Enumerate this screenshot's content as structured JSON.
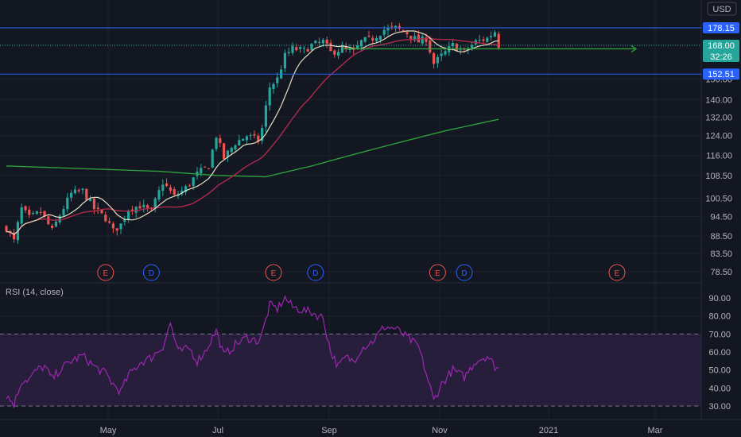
{
  "currency_badge": "USD",
  "rsi_label": "RSI (14, close)",
  "colors": {
    "background": "#131722",
    "up": "#26a69a",
    "down": "#ef5350",
    "sma_fast": "#e8dcc0",
    "sma_mid": "#b02a4d",
    "sma_slow": "#2e9f3a",
    "hline": "#2962ff",
    "rsi": "#9c27b0",
    "rsi_band": "#2a1f3f",
    "arrow": "#2e9f3a"
  },
  "price_tags": {
    "upper": "178.15",
    "current": "168.00",
    "countdown": "32:26",
    "lower": "152.51"
  },
  "chart_data": [
    {
      "type": "candlestick",
      "scale": "log",
      "y_ticks": [
        "178.00",
        "168.00",
        "150.00",
        "140.00",
        "132.00",
        "124.00",
        "116.00",
        "108.50",
        "100.50",
        "94.50",
        "88.50",
        "83.50",
        "78.50"
      ],
      "x_ticks": [
        "May",
        "Jul",
        "Sep",
        "Nov",
        "2021",
        "Mar"
      ],
      "horizontal_lines": [
        178.15,
        152.51
      ],
      "close_anchors": [
        {
          "t": 0,
          "v": 91
        },
        {
          "t": 2,
          "v": 87
        },
        {
          "t": 4,
          "v": 97
        },
        {
          "t": 6,
          "v": 94
        },
        {
          "t": 9,
          "v": 96
        },
        {
          "t": 12,
          "v": 90
        },
        {
          "t": 14,
          "v": 95
        },
        {
          "t": 17,
          "v": 102
        },
        {
          "t": 20,
          "v": 103
        },
        {
          "t": 23,
          "v": 97
        },
        {
          "t": 26,
          "v": 94
        },
        {
          "t": 28,
          "v": 90
        },
        {
          "t": 30,
          "v": 92
        },
        {
          "t": 32,
          "v": 97
        },
        {
          "t": 35,
          "v": 98
        },
        {
          "t": 38,
          "v": 96
        },
        {
          "t": 41,
          "v": 106
        },
        {
          "t": 44,
          "v": 101
        },
        {
          "t": 47,
          "v": 104
        },
        {
          "t": 50,
          "v": 109
        },
        {
          "t": 53,
          "v": 112
        },
        {
          "t": 55,
          "v": 124
        },
        {
          "t": 57,
          "v": 115
        },
        {
          "t": 60,
          "v": 121
        },
        {
          "t": 63,
          "v": 124
        },
        {
          "t": 66,
          "v": 122
        },
        {
          "t": 67,
          "v": 127
        },
        {
          "t": 69,
          "v": 146
        },
        {
          "t": 71,
          "v": 150
        },
        {
          "t": 73,
          "v": 162
        },
        {
          "t": 75,
          "v": 166
        },
        {
          "t": 78,
          "v": 165
        },
        {
          "t": 80,
          "v": 168
        },
        {
          "t": 83,
          "v": 170
        },
        {
          "t": 85,
          "v": 164
        },
        {
          "t": 88,
          "v": 166
        },
        {
          "t": 91,
          "v": 164
        },
        {
          "t": 93,
          "v": 170
        },
        {
          "t": 96,
          "v": 172
        },
        {
          "t": 99,
          "v": 177
        },
        {
          "t": 102,
          "v": 178
        },
        {
          "t": 105,
          "v": 175
        },
        {
          "t": 108,
          "v": 170
        },
        {
          "t": 110,
          "v": 172
        },
        {
          "t": 112,
          "v": 158
        },
        {
          "t": 114,
          "v": 162
        },
        {
          "t": 117,
          "v": 168
        },
        {
          "t": 120,
          "v": 164
        },
        {
          "t": 123,
          "v": 170
        },
        {
          "t": 126,
          "v": 172
        },
        {
          "t": 128,
          "v": 176
        },
        {
          "t": 129,
          "v": 168
        }
      ],
      "sma_slow_anchors": [
        {
          "t": 0,
          "v": 112
        },
        {
          "t": 20,
          "v": 111
        },
        {
          "t": 40,
          "v": 110
        },
        {
          "t": 55,
          "v": 108.5
        },
        {
          "t": 68,
          "v": 108
        },
        {
          "t": 80,
          "v": 112
        },
        {
          "t": 100,
          "v": 120
        },
        {
          "t": 115,
          "v": 126
        },
        {
          "t": 129,
          "v": 131
        }
      ],
      "events": [
        {
          "type": "earnings",
          "label": "E",
          "t": 26
        },
        {
          "type": "dividend",
          "label": "D",
          "t": 38
        },
        {
          "type": "earnings",
          "label": "E",
          "t": 70
        },
        {
          "type": "dividend",
          "label": "D",
          "t": 81
        },
        {
          "type": "earnings",
          "label": "E",
          "t": 113
        },
        {
          "type": "dividend",
          "label": "D",
          "t": 120
        },
        {
          "type": "earnings",
          "label": "E",
          "t": 160
        }
      ],
      "projection_arrow": {
        "from_t": 88,
        "to_t": 165,
        "v": 166
      }
    },
    {
      "type": "line",
      "title": "RSI (14, close)",
      "y_ticks": [
        "90.00",
        "80.00",
        "70.00",
        "60.00",
        "50.00",
        "40.00",
        "30.00"
      ],
      "bands": [
        70,
        30
      ],
      "rsi_anchors": [
        {
          "t": 0,
          "v": 36
        },
        {
          "t": 2,
          "v": 31
        },
        {
          "t": 4,
          "v": 44
        },
        {
          "t": 6,
          "v": 45
        },
        {
          "t": 8,
          "v": 50
        },
        {
          "t": 10,
          "v": 52
        },
        {
          "t": 12,
          "v": 45
        },
        {
          "t": 14,
          "v": 50
        },
        {
          "t": 17,
          "v": 55
        },
        {
          "t": 20,
          "v": 58
        },
        {
          "t": 23,
          "v": 52
        },
        {
          "t": 26,
          "v": 48
        },
        {
          "t": 28,
          "v": 42
        },
        {
          "t": 30,
          "v": 38
        },
        {
          "t": 32,
          "v": 47
        },
        {
          "t": 35,
          "v": 54
        },
        {
          "t": 38,
          "v": 57
        },
        {
          "t": 41,
          "v": 63
        },
        {
          "t": 43,
          "v": 76
        },
        {
          "t": 45,
          "v": 60
        },
        {
          "t": 48,
          "v": 62
        },
        {
          "t": 50,
          "v": 55
        },
        {
          "t": 52,
          "v": 60
        },
        {
          "t": 55,
          "v": 72
        },
        {
          "t": 57,
          "v": 58
        },
        {
          "t": 60,
          "v": 64
        },
        {
          "t": 63,
          "v": 68
        },
        {
          "t": 66,
          "v": 66
        },
        {
          "t": 67,
          "v": 70
        },
        {
          "t": 69,
          "v": 86
        },
        {
          "t": 71,
          "v": 84
        },
        {
          "t": 73,
          "v": 90
        },
        {
          "t": 75,
          "v": 85
        },
        {
          "t": 78,
          "v": 83
        },
        {
          "t": 80,
          "v": 82
        },
        {
          "t": 83,
          "v": 79
        },
        {
          "t": 85,
          "v": 60
        },
        {
          "t": 87,
          "v": 52
        },
        {
          "t": 89,
          "v": 57
        },
        {
          "t": 91,
          "v": 55
        },
        {
          "t": 93,
          "v": 62
        },
        {
          "t": 96,
          "v": 66
        },
        {
          "t": 99,
          "v": 74
        },
        {
          "t": 102,
          "v": 73
        },
        {
          "t": 105,
          "v": 68
        },
        {
          "t": 108,
          "v": 63
        },
        {
          "t": 110,
          "v": 48
        },
        {
          "t": 112,
          "v": 33
        },
        {
          "t": 114,
          "v": 42
        },
        {
          "t": 117,
          "v": 50
        },
        {
          "t": 120,
          "v": 46
        },
        {
          "t": 123,
          "v": 55
        },
        {
          "t": 126,
          "v": 58
        },
        {
          "t": 128,
          "v": 52
        },
        {
          "t": 129,
          "v": 51
        }
      ]
    }
  ]
}
